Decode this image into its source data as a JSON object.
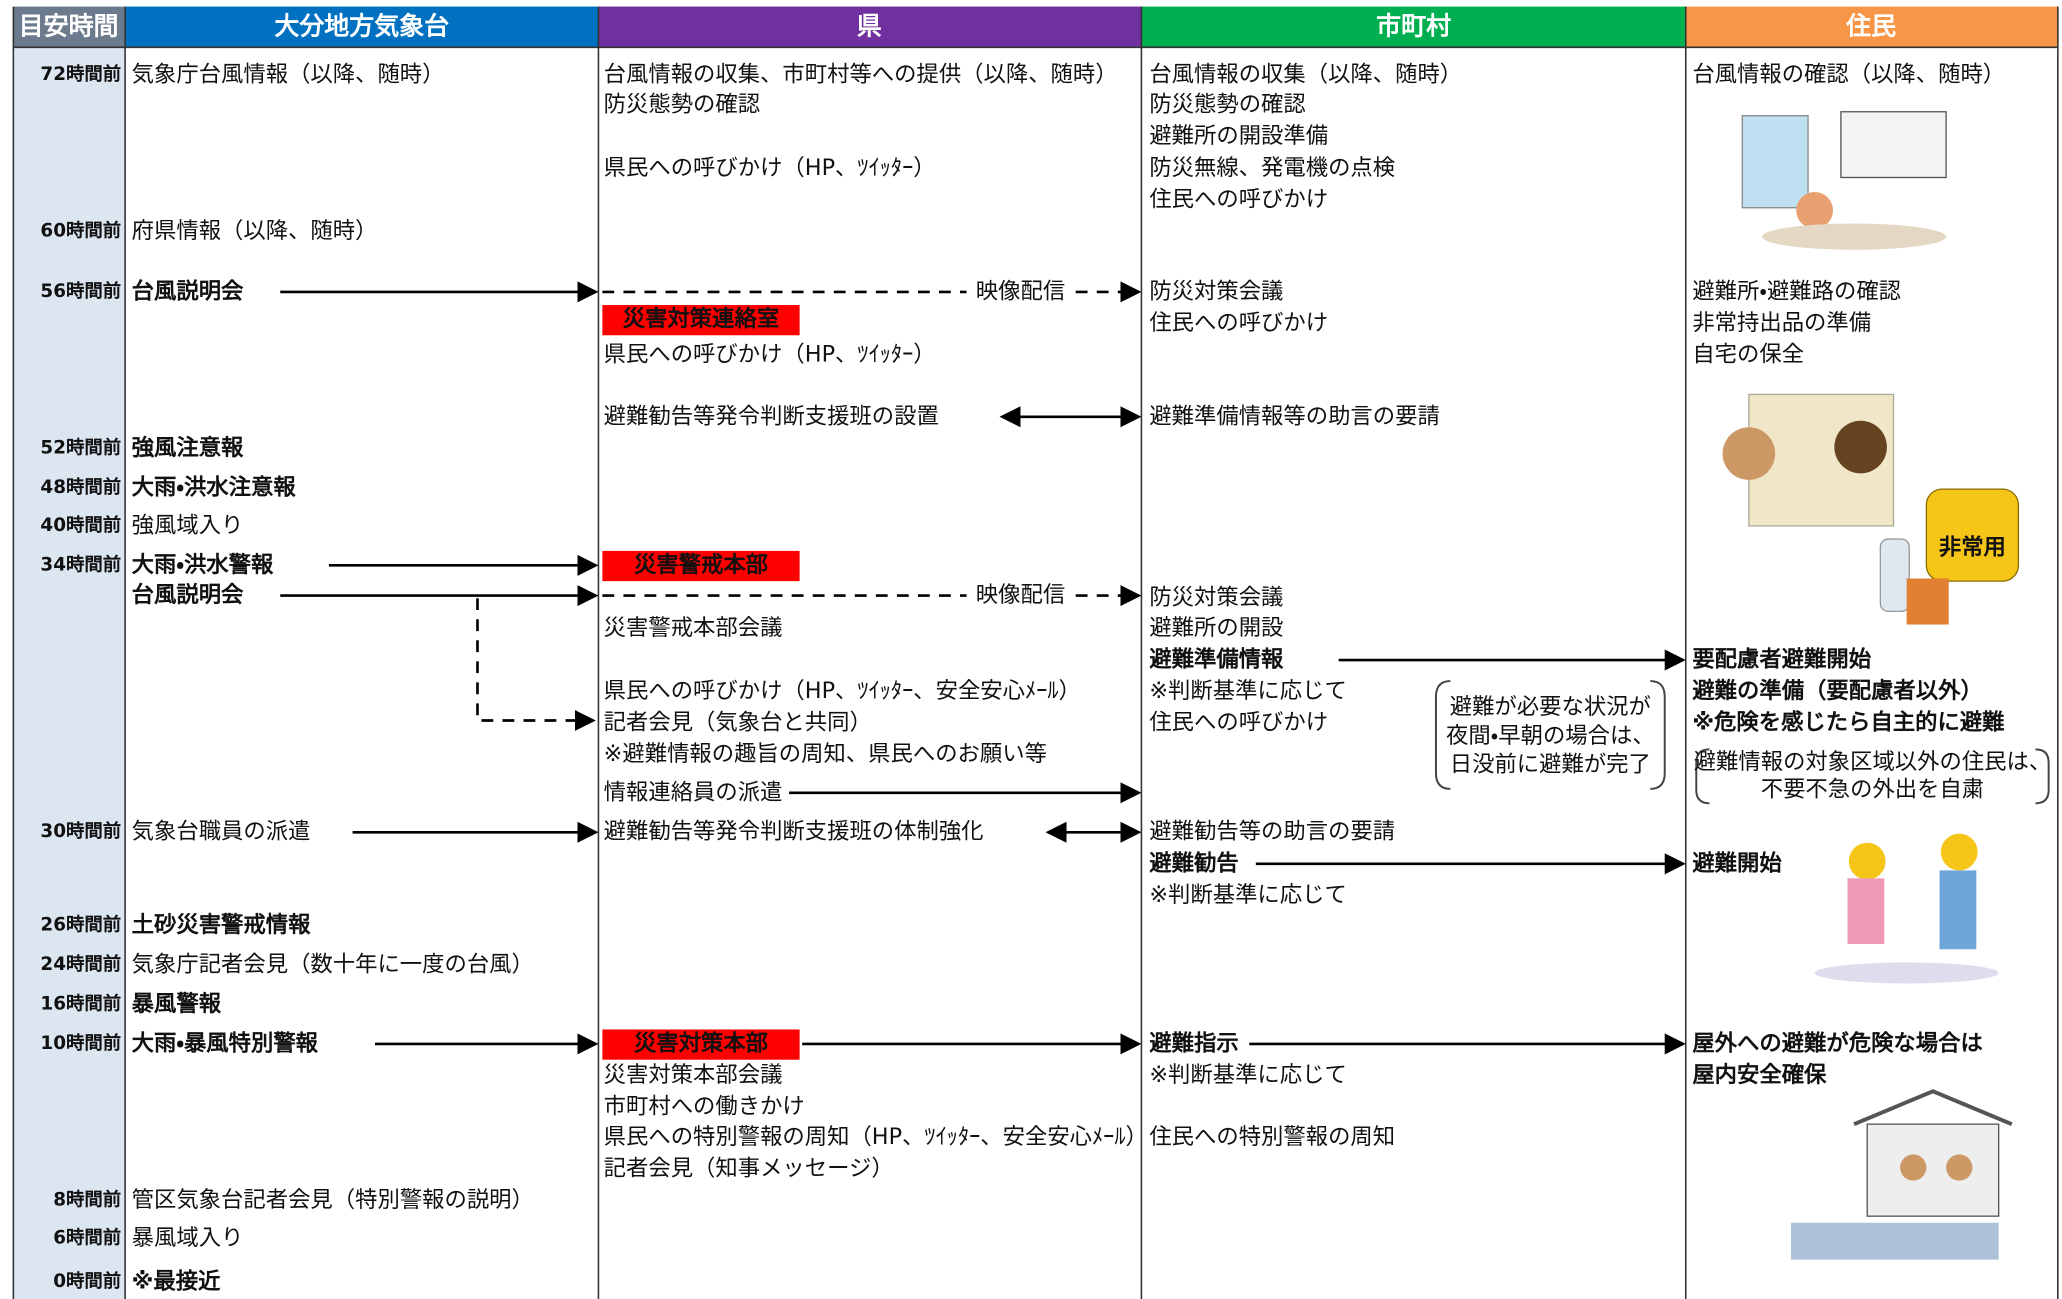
{
  "header": [
    "目安時間",
    "大分地方気象台",
    "県",
    "市町村",
    "住民"
  ],
  "times": [
    "72時間前",
    "60時間前",
    "56時間前",
    "52時間前",
    "48時間前",
    "40時間前",
    "34時間前",
    "30時間前",
    "26時間前",
    "24時間前",
    "16時間前",
    "10時間前",
    "8時間前",
    "6時間前",
    "0時間前"
  ],
  "columns": [
    {
      "items": [
        {
          "text": "気象庁台風情報（以降、随時）",
          "style": "plain"
        },
        {
          "text": "府県情報（以降、随時）",
          "style": "plain"
        },
        {
          "text": "台風説明会",
          "style": "bold"
        },
        {
          "text": "強風注意報",
          "style": "red"
        },
        {
          "text": "大雨・洪水注意報",
          "style": "red"
        },
        {
          "text": "強風域入り",
          "style": "plain"
        },
        {
          "text": "大雨・洪水警報",
          "style": "red"
        },
        {
          "text": "台風説明会",
          "style": "bold"
        },
        {
          "text": "気象台職員の派遣",
          "style": "plain"
        },
        {
          "text": "土砂災害警戒情報",
          "style": "red"
        },
        {
          "text": "気象庁記者会見（数十年に一度の台風）",
          "style": "plain"
        },
        {
          "text": "暴風警報",
          "style": "red"
        },
        {
          "text": "大雨・暴風特別警報",
          "style": "red"
        },
        {
          "text": "管区気象台記者会見（特別警報の説明）",
          "style": "plain"
        },
        {
          "text": "暴風域入り",
          "style": "plain"
        },
        {
          "text": "※最接近",
          "style": "red"
        }
      ]
    },
    {
      "items": [
        {
          "text": "台風情報の収集、市町村等への提供（以降、随時）",
          "style": "plain"
        },
        {
          "text": "防災態勢の確認",
          "style": "plain"
        },
        {
          "text": "県民への呼びかけ（HP、ﾂｲｯﾀｰ）",
          "style": "plain"
        },
        {
          "text": "災害対策連絡室",
          "style": "box"
        },
        {
          "text": "県民への呼びかけ（HP、ﾂｲｯﾀｰ）",
          "style": "plain"
        },
        {
          "text": "避難勧告等発令判断支援班の設置",
          "style": "plain"
        },
        {
          "text": "災害警戒本部",
          "style": "box"
        },
        {
          "text": "災害警戒本部会議",
          "style": "plain"
        },
        {
          "text": "県民への呼びかけ（HP、ﾂｲｯﾀｰ、安全安心ﾒｰﾙ）",
          "style": "plain"
        },
        {
          "text": "記者会見（気象台と共同）",
          "style": "plain"
        },
        {
          "text": "※避難情報の趣旨の周知、県民へのお願い等",
          "style": "plain"
        },
        {
          "text": "情報連絡員の派遣",
          "style": "plain"
        },
        {
          "text": "避難勧告等発令判断支援班の体制強化",
          "style": "plain"
        },
        {
          "text": "災害対策本部",
          "style": "box"
        },
        {
          "text": "災害対策本部会議",
          "style": "plain"
        },
        {
          "text": "市町村への働きかけ",
          "style": "plain"
        },
        {
          "text": "県民への特別警報の周知（HP、ﾂｲｯﾀｰ、安全安心ﾒｰﾙ）",
          "style": "small"
        },
        {
          "text": "記者会見（知事メッセージ）",
          "style": "plain"
        }
      ]
    },
    {
      "items": [
        {
          "text": "台風情報の収集（以降、随時）",
          "style": "plain"
        },
        {
          "text": "防災態勢の確認",
          "style": "plain"
        },
        {
          "text": "避難所の開設準備",
          "style": "plain"
        },
        {
          "text": "防災無線、発電機の点検",
          "style": "plain"
        },
        {
          "text": "住民への呼びかけ",
          "style": "plain"
        },
        {
          "text": "防災対策会議",
          "style": "redplain"
        },
        {
          "text": "住民への呼びかけ",
          "style": "plain"
        },
        {
          "text": "避難準備情報等の助言の要請",
          "style": "plain"
        },
        {
          "text": "防災対策会議",
          "style": "redplain"
        },
        {
          "text": "避難所の開設",
          "style": "plain"
        },
        {
          "text": "避難準備情報",
          "style": "blue"
        },
        {
          "text": "※判断基準に応じて",
          "style": "plain"
        },
        {
          "text": "住民への呼びかけ",
          "style": "plain"
        },
        {
          "text": "避難勧告等の助言の要請",
          "style": "plain"
        },
        {
          "text": "避難勧告",
          "style": "blue"
        },
        {
          "text": "※判断基準に応じて",
          "style": "plain"
        },
        {
          "text": "避難指示",
          "style": "blue"
        },
        {
          "text": "※判断基準に応じて",
          "style": "plain"
        },
        {
          "text": "住民への特別警報の周知",
          "style": "plain"
        }
      ]
    },
    {
      "items": [
        {
          "text": "台風情報の確認（以降、随時）",
          "style": "plain"
        },
        {
          "text": "避難所・避難路の確認",
          "style": "plain"
        },
        {
          "text": "非常持出品の準備",
          "style": "plain"
        },
        {
          "text": "自宅の保全",
          "style": "plain"
        },
        {
          "text": "要配慮者避難開始",
          "style": "blue"
        },
        {
          "text": "避難の準備（要配慮者以外）",
          "style": "bold"
        },
        {
          "text": "※危険を感じたら自主的に避難",
          "style": "bold"
        },
        {
          "text": "避難開始",
          "style": "blue"
        },
        {
          "text": "屋外への避難が危険な場合は",
          "style": "blue"
        },
        {
          "text": "屋内安全確保",
          "style": "blue"
        }
      ]
    }
  ],
  "arrow_label": "映像配信",
  "notes": [
    {
      "lines": [
        "避難が必要な状況が",
        "夜間・早朝の場合は、",
        "日没前に避難が完了"
      ]
    },
    {
      "lines": [
        "避難情報の対象区域以外の住民は、",
        "不要不急の外出を自粛"
      ]
    }
  ],
  "illustration_label": "非常用"
}
